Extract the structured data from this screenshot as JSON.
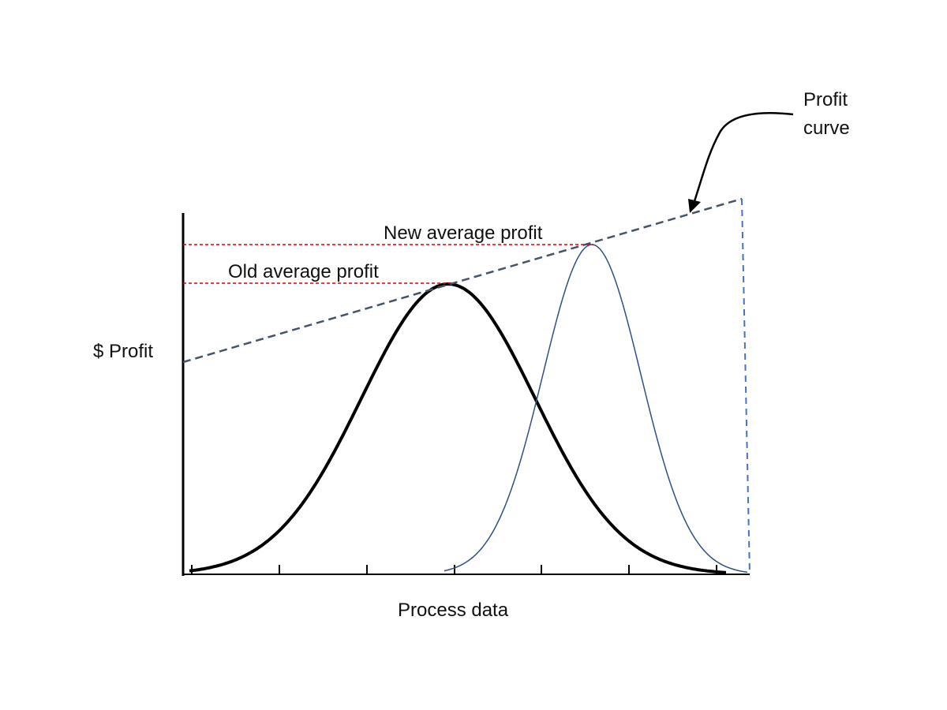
{
  "labels": {
    "profit_curve_line1": "Profit",
    "profit_curve_line2": "curve",
    "new_average_profit": "New average profit",
    "old_average_profit": "Old average profit",
    "y_axis": "$ Profit",
    "x_axis": "Process data"
  },
  "colors": {
    "axis": "#000000",
    "old_distribution": "#000000",
    "new_distribution": "#2f4f86",
    "profit_curve": "#44546a",
    "guide_lines": "#e00000",
    "end_line": "#4472c4"
  }
}
